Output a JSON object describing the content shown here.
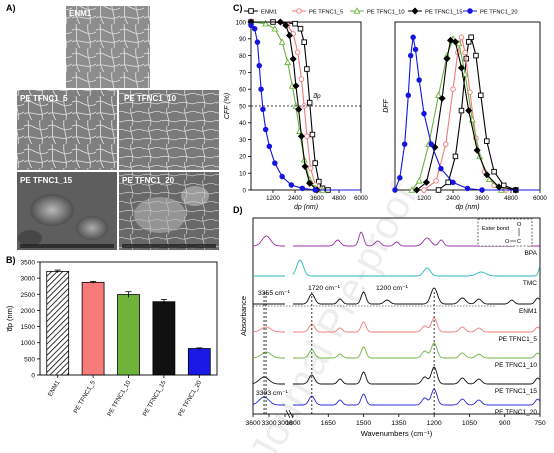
{
  "watermark": "Journal Pre-proof",
  "panel_a": {
    "label": "A)",
    "micrographs": [
      {
        "label": "ENM1",
        "tone": "#8d8d8d"
      },
      {
        "label": "PE TFNC1_5",
        "tone": "#7f7f7f"
      },
      {
        "label": "PE TFNC1_10",
        "tone": "#7a7a7a"
      },
      {
        "label": "PE TFNC1_15",
        "tone": "#5e5e5e"
      },
      {
        "label": "PE TFNC1_20",
        "tone": "#686868"
      }
    ]
  },
  "legend": {
    "items": [
      {
        "label": "ENM1",
        "color": "#000000",
        "marker": "square"
      },
      {
        "label": "PE TFNC1_5",
        "color": "#f07a7a",
        "marker": "circle"
      },
      {
        "label": "PE TFNC1_10",
        "color": "#6db33f",
        "marker": "triangle"
      },
      {
        "label": "PE TFNC1_15",
        "color": "#000000",
        "marker": "diamond"
      },
      {
        "label": "PE TFNC1_20",
        "color": "#1515e0",
        "marker": "pentagon"
      }
    ]
  },
  "chart_data": [
    {
      "id": "B",
      "panel_label": "B)",
      "type": "bar",
      "ylabel": "d̅p (nm)",
      "ylim": [
        0,
        3500
      ],
      "yticks": [
        0,
        500,
        1000,
        1500,
        2000,
        2500,
        3000,
        3500
      ],
      "categories": [
        "ENM1",
        "PE TFNC1_5",
        "PE TFNC1_10",
        "PE TFNC1_15",
        "PE TFNC1_20"
      ],
      "values": [
        3210,
        2870,
        2490,
        2270,
        820
      ],
      "errors": [
        40,
        30,
        90,
        70,
        20
      ],
      "colors": [
        "hatch",
        "#f77b7b",
        "#6fb43a",
        "#111111",
        "#1a1ae6"
      ]
    },
    {
      "id": "C-left",
      "panel_label": "C)",
      "type": "line",
      "ylabel": "CFF (%)",
      "xlabel": "dp (nm)",
      "xlim": [
        0,
        6000
      ],
      "ylim": [
        0,
        100
      ],
      "xticks": [
        1200,
        2400,
        3600,
        4800,
        6000
      ],
      "yticks": [
        0,
        10,
        20,
        30,
        40,
        50,
        60,
        70,
        80,
        90,
        100
      ],
      "annotation": "d̅p",
      "dashed_level": 50,
      "series": [
        {
          "name": "ENM1",
          "color": "#000000",
          "points": [
            [
              0,
              100
            ],
            [
              1200,
              100
            ],
            [
              2400,
              99
            ],
            [
              2700,
              96
            ],
            [
              2900,
              88
            ],
            [
              3050,
              72
            ],
            [
              3200,
              52
            ],
            [
              3350,
              33
            ],
            [
              3500,
              16
            ],
            [
              3700,
              5
            ],
            [
              3900,
              1
            ],
            [
              4200,
              0
            ],
            [
              6000,
              0
            ]
          ]
        },
        {
          "name": "PE TFNC1_5",
          "color": "#f07a7a",
          "points": [
            [
              0,
              100
            ],
            [
              1600,
              100
            ],
            [
              2000,
              98
            ],
            [
              2300,
              93
            ],
            [
              2550,
              82
            ],
            [
              2750,
              66
            ],
            [
              2900,
              50
            ],
            [
              3050,
              32
            ],
            [
              3250,
              13
            ],
            [
              3500,
              3
            ],
            [
              3800,
              0
            ],
            [
              6000,
              0
            ]
          ]
        },
        {
          "name": "PE TFNC1_10",
          "color": "#6db33f",
          "points": [
            [
              0,
              100
            ],
            [
              800,
              99
            ],
            [
              1300,
              96
            ],
            [
              1700,
              88
            ],
            [
              2000,
              76
            ],
            [
              2250,
              62
            ],
            [
              2450,
              50
            ],
            [
              2650,
              35
            ],
            [
              2900,
              18
            ],
            [
              3200,
              6
            ],
            [
              3500,
              1
            ],
            [
              3900,
              0
            ],
            [
              6000,
              0
            ]
          ]
        },
        {
          "name": "PE TFNC1_15",
          "color": "#000000",
          "points": [
            [
              0,
              100
            ],
            [
              1600,
              100
            ],
            [
              1900,
              98
            ],
            [
              2100,
              92
            ],
            [
              2300,
              78
            ],
            [
              2450,
              62
            ],
            [
              2600,
              48
            ],
            [
              2750,
              32
            ],
            [
              2950,
              14
            ],
            [
              3200,
              4
            ],
            [
              3600,
              0
            ],
            [
              6000,
              0
            ]
          ]
        },
        {
          "name": "PE TFNC1_20",
          "color": "#1515e0",
          "points": [
            [
              0,
              98
            ],
            [
              200,
              96
            ],
            [
              350,
              88
            ],
            [
              450,
              74
            ],
            [
              550,
              60
            ],
            [
              650,
              48
            ],
            [
              800,
              36
            ],
            [
              1000,
              26
            ],
            [
              1300,
              16
            ],
            [
              1700,
              8
            ],
            [
              2200,
              3
            ],
            [
              2800,
              1
            ],
            [
              3500,
              0
            ],
            [
              6000,
              0
            ]
          ]
        }
      ]
    },
    {
      "id": "C-right",
      "type": "line",
      "ylabel": "DFF",
      "xlabel": "dp (nm)",
      "xlim": [
        0,
        6000
      ],
      "ylim": [
        0,
        1.1
      ],
      "xticks": [
        1200,
        2400,
        3600,
        4800,
        6000
      ],
      "series": [
        {
          "name": "ENM1",
          "color": "#000000",
          "points": [
            [
              1800,
              0
            ],
            [
              2200,
              0.05
            ],
            [
              2500,
              0.22
            ],
            [
              2750,
              0.52
            ],
            [
              2950,
              0.86
            ],
            [
              3050,
              0.97
            ],
            [
              3150,
              1.0
            ],
            [
              3350,
              0.88
            ],
            [
              3550,
              0.62
            ],
            [
              3800,
              0.32
            ],
            [
              4100,
              0.12
            ],
            [
              4500,
              0.03
            ],
            [
              5000,
              0
            ],
            [
              6000,
              0
            ]
          ]
        },
        {
          "name": "PE TFNC1_5",
          "color": "#f07a7a",
          "points": [
            [
              1200,
              0
            ],
            [
              1700,
              0.06
            ],
            [
              2100,
              0.3
            ],
            [
              2400,
              0.66
            ],
            [
              2600,
              0.9
            ],
            [
              2750,
              1.0
            ],
            [
              2900,
              0.9
            ],
            [
              3100,
              0.64
            ],
            [
              3350,
              0.34
            ],
            [
              3700,
              0.12
            ],
            [
              4100,
              0.03
            ],
            [
              4600,
              0
            ],
            [
              6000,
              0
            ]
          ]
        },
        {
          "name": "PE TFNC1_10",
          "color": "#6db33f",
          "points": [
            [
              700,
              0
            ],
            [
              1000,
              0.06
            ],
            [
              1400,
              0.3
            ],
            [
              1800,
              0.62
            ],
            [
              2150,
              0.88
            ],
            [
              2400,
              0.99
            ],
            [
              2650,
              0.96
            ],
            [
              2900,
              0.76
            ],
            [
              3200,
              0.46
            ],
            [
              3500,
              0.22
            ],
            [
              3900,
              0.07
            ],
            [
              4400,
              0
            ],
            [
              6000,
              0
            ]
          ]
        },
        {
          "name": "PE TFNC1_15",
          "color": "#000000",
          "points": [
            [
              900,
              0
            ],
            [
              1300,
              0.05
            ],
            [
              1650,
              0.28
            ],
            [
              1950,
              0.6
            ],
            [
              2150,
              0.86
            ],
            [
              2300,
              0.98
            ],
            [
              2500,
              0.97
            ],
            [
              2750,
              0.8
            ],
            [
              3050,
              0.52
            ],
            [
              3400,
              0.26
            ],
            [
              3800,
              0.1
            ],
            [
              4300,
              0.02
            ],
            [
              5000,
              0
            ],
            [
              6000,
              0
            ]
          ]
        },
        {
          "name": "PE TFNC1_20",
          "color": "#1515e0",
          "points": [
            [
              0,
              0
            ],
            [
              200,
              0.08
            ],
            [
              400,
              0.3
            ],
            [
              550,
              0.62
            ],
            [
              650,
              0.88
            ],
            [
              750,
              1.0
            ],
            [
              850,
              0.92
            ],
            [
              1000,
              0.72
            ],
            [
              1200,
              0.5
            ],
            [
              1500,
              0.3
            ],
            [
              1900,
              0.14
            ],
            [
              2400,
              0.05
            ],
            [
              3000,
              0.01
            ],
            [
              3600,
              0
            ],
            [
              6000,
              0
            ]
          ]
        }
      ]
    },
    {
      "id": "D",
      "panel_label": "D)",
      "type": "line",
      "xlabel": "Wavenumbers (cm⁻¹)",
      "ylabel": "Absorbance",
      "x_ticks_left": [
        3600,
        3300,
        3000
      ],
      "x_ticks_right": [
        1800,
        1650,
        1500,
        1350,
        1200,
        1050,
        900,
        750
      ],
      "xlim_left": [
        3600,
        3000
      ],
      "xlim_right": [
        1800,
        750
      ],
      "annotations": [
        "3355 cm⁻¹",
        "1720 cm⁻¹",
        "1200 cm⁻¹",
        "3393 cm⁻¹"
      ],
      "inset_label": "Ester bond",
      "inset_atoms": [
        "O",
        "O",
        "C"
      ],
      "dashed_positions": [
        3393,
        3355,
        1720,
        1200
      ],
      "series": [
        {
          "name": "BPA",
          "color": "#9b2fa6"
        },
        {
          "name": "TMC",
          "color": "#27b7b7"
        },
        {
          "name": "ENM1",
          "color": "#111111"
        },
        {
          "name": "PE TFNC1_5",
          "color": "#f07a7a"
        },
        {
          "name": "PE TFNC1_10",
          "color": "#6db33f"
        },
        {
          "name": "PE TFNC1_15",
          "color": "#111111"
        },
        {
          "name": "PE TFNC1_20",
          "color": "#2b2bd6"
        }
      ]
    }
  ]
}
